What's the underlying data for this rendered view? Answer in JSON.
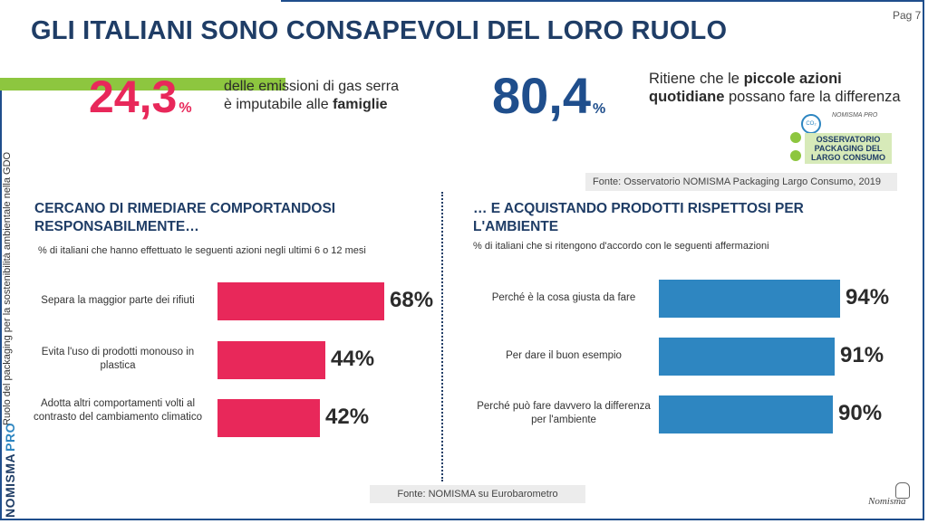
{
  "page": {
    "title": "GLI ITALIANI SONO CONSAPEVOLI DEL LORO RUOLO",
    "page_number": "Pag 7",
    "side_caption": "Ruolo del packaging per la sostenibilità ambientale nella GDO",
    "brand_name": "NOMISMA",
    "brand_suffix": "PRO",
    "signature": "Nomisma"
  },
  "colors": {
    "accent_pink": "#e8285a",
    "accent_blue": "#1f4e8c",
    "bar_blue": "#2e86c1",
    "green": "#8dc63f"
  },
  "stats": [
    {
      "value": "24,3",
      "unit": "%",
      "line1": "delle emissioni di gas serra",
      "line2_a": "è imputabile alle ",
      "line2_b": "famiglie"
    },
    {
      "value": "80,4",
      "unit": "%",
      "line1_a": "Ritiene che le ",
      "line1_b": "piccole azioni",
      "line2_a": "quotidiane",
      "line2_b": " possano fare la differenza"
    }
  ],
  "logo": {
    "text": "OSSERVATORIO PACKAGING DEL LARGO CONSUMO",
    "co2": "CO₂",
    "brand": "NOMISMA PRO"
  },
  "source_top": "Fonte: Osservatorio NOMISMA Packaging Largo Consumo, 2019",
  "source_bottom": "Fonte: NOMISMA su Eurobarometro",
  "chart_data": [
    {
      "type": "bar",
      "orientation": "horizontal",
      "title": "CERCANO DI RIMEDIARE COMPORTANDOSI RESPONSABILMENTE…",
      "subtitle": "% di italiani che hanno effettuato le seguenti azioni negli ultimi 6 o 12 mesi",
      "categories": [
        "Separa la maggior parte dei rifiuti",
        "Evita l'uso di prodotti monouso in plastica",
        "Adotta altri comportamenti volti al contrasto del cambiamento climatico"
      ],
      "values": [
        68,
        44,
        42
      ],
      "value_labels": [
        "68%",
        "44%",
        "42%"
      ],
      "color": "#e8285a",
      "grid": false
    },
    {
      "type": "bar",
      "orientation": "horizontal",
      "title": "… E ACQUISTANDO PRODOTTI RISPETTOSI PER L'AMBIENTE",
      "subtitle": "% di italiani che si ritengono d'accordo con le seguenti affermazioni",
      "categories": [
        "Perché è la cosa giusta da fare",
        "Per dare il buon esempio",
        "Perché può fare davvero la differenza per l'ambiente"
      ],
      "values": [
        94,
        91,
        90
      ],
      "value_labels": [
        "94%",
        "91%",
        "90%"
      ],
      "color": "#2e86c1",
      "grid": false
    }
  ]
}
